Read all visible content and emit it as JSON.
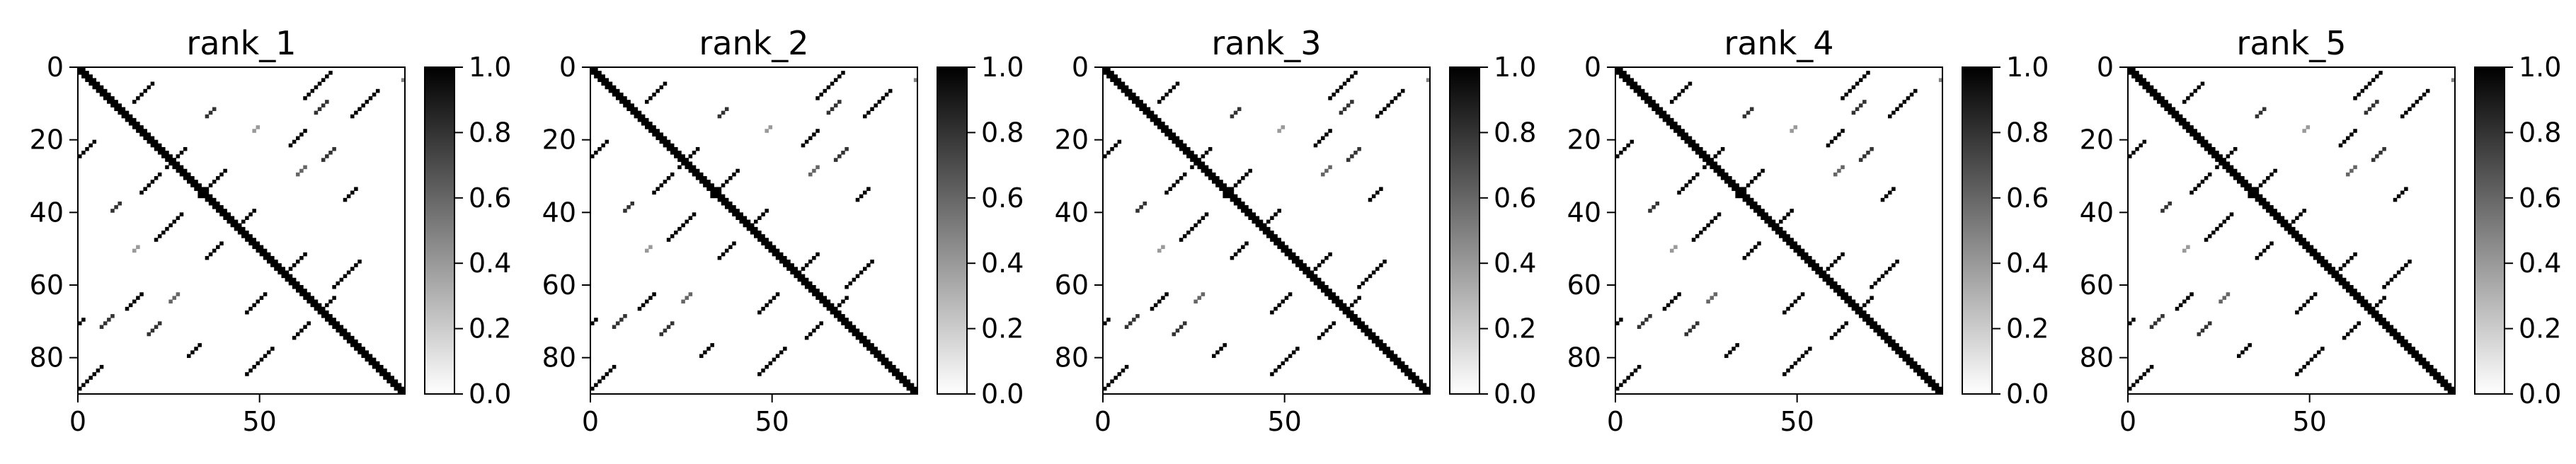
{
  "chart_data": [
    {
      "type": "heatmap",
      "title": "rank_1",
      "size": 90,
      "colormap": "gray_r",
      "x_ticks": [
        0,
        50
      ],
      "y_ticks": [
        0,
        20,
        40,
        60,
        80
      ],
      "colorbar": {
        "range": [
          0.0,
          1.0
        ],
        "ticks": [
          "0.0",
          "0.2",
          "0.4",
          "0.6",
          "0.8",
          "1.0"
        ]
      },
      "contacts": [
        {
          "i": 0,
          "j": 0,
          "w": 14,
          "v": 1.0
        },
        {
          "i": 14,
          "j": 14,
          "w": 10,
          "v": 1.0
        },
        {
          "i": 24,
          "j": 24,
          "w": 22,
          "v": 1.0
        },
        {
          "i": 46,
          "j": 46,
          "w": 10,
          "v": 1.0
        },
        {
          "i": 56,
          "j": 56,
          "w": 10,
          "v": 1.0
        },
        {
          "i": 66,
          "j": 66,
          "w": 24,
          "v": 1.0
        },
        {
          "i": 4,
          "j": 20,
          "w": 6,
          "v": 1.0
        },
        {
          "i": 22,
          "j": 29,
          "w": 6,
          "v": 1.0
        },
        {
          "i": 28,
          "j": 40,
          "w": 8,
          "v": 1.0
        },
        {
          "i": 39,
          "j": 48,
          "w": 5,
          "v": 1.0
        },
        {
          "i": 51,
          "j": 62,
          "w": 6,
          "v": 1.0
        },
        {
          "i": 63,
          "j": 70,
          "w": 5,
          "v": 1.0
        },
        {
          "i": 1,
          "j": 69,
          "w": 8,
          "v": 1.0
        },
        {
          "i": 6,
          "j": 82,
          "w": 8,
          "v": 1.0
        },
        {
          "i": 9,
          "j": 68,
          "w": 4,
          "v": 0.8
        },
        {
          "i": 17,
          "j": 62,
          "w": 5,
          "v": 1.0
        },
        {
          "i": 22,
          "j": 70,
          "w": 4,
          "v": 0.8
        },
        {
          "i": 33,
          "j": 76,
          "w": 4,
          "v": 1.0
        },
        {
          "i": 53,
          "j": 77,
          "w": 8,
          "v": 1.0
        },
        {
          "i": 11,
          "j": 37,
          "w": 3,
          "v": 0.8
        },
        {
          "i": 27,
          "j": 62,
          "w": 3,
          "v": 0.6
        },
        {
          "i": 2,
          "j": 90,
          "w": 2,
          "v": 0.5
        },
        {
          "i": 16,
          "j": 49,
          "w": 2,
          "v": 0.4
        }
      ]
    },
    {
      "type": "heatmap",
      "title": "rank_2",
      "size": 90,
      "colormap": "gray_r",
      "x_ticks": [
        0,
        50
      ],
      "y_ticks": [
        0,
        20,
        40,
        60,
        80
      ],
      "colorbar": {
        "range": [
          0.0,
          1.0
        ],
        "ticks": [
          "0.0",
          "0.2",
          "0.4",
          "0.6",
          "0.8",
          "1.0"
        ]
      },
      "contacts": [
        {
          "i": 0,
          "j": 0,
          "w": 14,
          "v": 1.0
        },
        {
          "i": 14,
          "j": 14,
          "w": 10,
          "v": 1.0
        },
        {
          "i": 24,
          "j": 24,
          "w": 22,
          "v": 1.0
        },
        {
          "i": 46,
          "j": 46,
          "w": 10,
          "v": 1.0
        },
        {
          "i": 56,
          "j": 56,
          "w": 10,
          "v": 1.0
        },
        {
          "i": 66,
          "j": 66,
          "w": 24,
          "v": 1.0
        },
        {
          "i": 4,
          "j": 20,
          "w": 6,
          "v": 1.0
        },
        {
          "i": 22,
          "j": 29,
          "w": 6,
          "v": 1.0
        },
        {
          "i": 28,
          "j": 40,
          "w": 8,
          "v": 1.0
        },
        {
          "i": 39,
          "j": 48,
          "w": 5,
          "v": 1.0
        },
        {
          "i": 51,
          "j": 62,
          "w": 6,
          "v": 1.0
        },
        {
          "i": 63,
          "j": 70,
          "w": 5,
          "v": 1.0
        },
        {
          "i": 1,
          "j": 69,
          "w": 8,
          "v": 1.0
        },
        {
          "i": 6,
          "j": 82,
          "w": 8,
          "v": 1.0
        },
        {
          "i": 9,
          "j": 68,
          "w": 4,
          "v": 0.8
        },
        {
          "i": 17,
          "j": 62,
          "w": 5,
          "v": 1.0
        },
        {
          "i": 22,
          "j": 70,
          "w": 4,
          "v": 0.8
        },
        {
          "i": 33,
          "j": 76,
          "w": 4,
          "v": 1.0
        },
        {
          "i": 53,
          "j": 77,
          "w": 8,
          "v": 1.0
        },
        {
          "i": 11,
          "j": 37,
          "w": 3,
          "v": 0.8
        },
        {
          "i": 27,
          "j": 62,
          "w": 3,
          "v": 0.6
        },
        {
          "i": 2,
          "j": 90,
          "w": 2,
          "v": 0.5
        },
        {
          "i": 16,
          "j": 49,
          "w": 2,
          "v": 0.4
        }
      ]
    },
    {
      "type": "heatmap",
      "title": "rank_3",
      "size": 90,
      "colormap": "gray_r",
      "x_ticks": [
        0,
        50
      ],
      "y_ticks": [
        0,
        20,
        40,
        60,
        80
      ],
      "colorbar": {
        "range": [
          0.0,
          1.0
        ],
        "ticks": [
          "0.0",
          "0.2",
          "0.4",
          "0.6",
          "0.8",
          "1.0"
        ]
      },
      "contacts": [
        {
          "i": 0,
          "j": 0,
          "w": 14,
          "v": 1.0
        },
        {
          "i": 14,
          "j": 14,
          "w": 10,
          "v": 1.0
        },
        {
          "i": 24,
          "j": 24,
          "w": 22,
          "v": 1.0
        },
        {
          "i": 46,
          "j": 46,
          "w": 10,
          "v": 1.0
        },
        {
          "i": 56,
          "j": 56,
          "w": 10,
          "v": 1.0
        },
        {
          "i": 66,
          "j": 66,
          "w": 24,
          "v": 1.0
        },
        {
          "i": 4,
          "j": 20,
          "w": 6,
          "v": 1.0
        },
        {
          "i": 22,
          "j": 29,
          "w": 6,
          "v": 1.0
        },
        {
          "i": 28,
          "j": 40,
          "w": 8,
          "v": 1.0
        },
        {
          "i": 39,
          "j": 48,
          "w": 5,
          "v": 1.0
        },
        {
          "i": 51,
          "j": 62,
          "w": 6,
          "v": 1.0
        },
        {
          "i": 63,
          "j": 70,
          "w": 5,
          "v": 1.0
        },
        {
          "i": 1,
          "j": 69,
          "w": 8,
          "v": 1.0
        },
        {
          "i": 6,
          "j": 82,
          "w": 8,
          "v": 1.0
        },
        {
          "i": 9,
          "j": 68,
          "w": 4,
          "v": 0.8
        },
        {
          "i": 17,
          "j": 62,
          "w": 5,
          "v": 1.0
        },
        {
          "i": 22,
          "j": 70,
          "w": 4,
          "v": 0.8
        },
        {
          "i": 33,
          "j": 76,
          "w": 4,
          "v": 1.0
        },
        {
          "i": 53,
          "j": 77,
          "w": 8,
          "v": 1.0
        },
        {
          "i": 11,
          "j": 37,
          "w": 3,
          "v": 0.8
        },
        {
          "i": 27,
          "j": 62,
          "w": 3,
          "v": 0.6
        },
        {
          "i": 2,
          "j": 90,
          "w": 2,
          "v": 0.5
        },
        {
          "i": 16,
          "j": 49,
          "w": 2,
          "v": 0.4
        }
      ]
    },
    {
      "type": "heatmap",
      "title": "rank_4",
      "size": 90,
      "colormap": "gray_r",
      "x_ticks": [
        0,
        50
      ],
      "y_ticks": [
        0,
        20,
        40,
        60,
        80
      ],
      "colorbar": {
        "range": [
          0.0,
          1.0
        ],
        "ticks": [
          "0.0",
          "0.2",
          "0.4",
          "0.6",
          "0.8",
          "1.0"
        ]
      },
      "contacts": [
        {
          "i": 0,
          "j": 0,
          "w": 14,
          "v": 1.0
        },
        {
          "i": 14,
          "j": 14,
          "w": 10,
          "v": 1.0
        },
        {
          "i": 24,
          "j": 24,
          "w": 22,
          "v": 1.0
        },
        {
          "i": 46,
          "j": 46,
          "w": 10,
          "v": 1.0
        },
        {
          "i": 56,
          "j": 56,
          "w": 10,
          "v": 1.0
        },
        {
          "i": 66,
          "j": 66,
          "w": 24,
          "v": 1.0
        },
        {
          "i": 4,
          "j": 20,
          "w": 6,
          "v": 1.0
        },
        {
          "i": 22,
          "j": 29,
          "w": 6,
          "v": 1.0
        },
        {
          "i": 28,
          "j": 40,
          "w": 8,
          "v": 1.0
        },
        {
          "i": 39,
          "j": 48,
          "w": 5,
          "v": 1.0
        },
        {
          "i": 51,
          "j": 62,
          "w": 6,
          "v": 1.0
        },
        {
          "i": 63,
          "j": 70,
          "w": 5,
          "v": 1.0
        },
        {
          "i": 1,
          "j": 69,
          "w": 8,
          "v": 1.0
        },
        {
          "i": 6,
          "j": 82,
          "w": 8,
          "v": 1.0
        },
        {
          "i": 9,
          "j": 68,
          "w": 4,
          "v": 0.8
        },
        {
          "i": 17,
          "j": 62,
          "w": 5,
          "v": 1.0
        },
        {
          "i": 22,
          "j": 70,
          "w": 4,
          "v": 0.8
        },
        {
          "i": 33,
          "j": 76,
          "w": 4,
          "v": 1.0
        },
        {
          "i": 53,
          "j": 77,
          "w": 8,
          "v": 1.0
        },
        {
          "i": 11,
          "j": 37,
          "w": 3,
          "v": 0.8
        },
        {
          "i": 27,
          "j": 62,
          "w": 3,
          "v": 0.6
        },
        {
          "i": 2,
          "j": 90,
          "w": 2,
          "v": 0.5
        },
        {
          "i": 16,
          "j": 49,
          "w": 2,
          "v": 0.4
        }
      ]
    },
    {
      "type": "heatmap",
      "title": "rank_5",
      "size": 90,
      "colormap": "gray_r",
      "x_ticks": [
        0,
        50
      ],
      "y_ticks": [
        0,
        20,
        40,
        60,
        80
      ],
      "colorbar": {
        "range": [
          0.0,
          1.0
        ],
        "ticks": [
          "0.0",
          "0.2",
          "0.4",
          "0.6",
          "0.8",
          "1.0"
        ]
      },
      "contacts": [
        {
          "i": 0,
          "j": 0,
          "w": 14,
          "v": 1.0
        },
        {
          "i": 14,
          "j": 14,
          "w": 10,
          "v": 1.0
        },
        {
          "i": 24,
          "j": 24,
          "w": 22,
          "v": 1.0
        },
        {
          "i": 46,
          "j": 46,
          "w": 10,
          "v": 1.0
        },
        {
          "i": 56,
          "j": 56,
          "w": 10,
          "v": 1.0
        },
        {
          "i": 66,
          "j": 66,
          "w": 24,
          "v": 1.0
        },
        {
          "i": 4,
          "j": 20,
          "w": 6,
          "v": 1.0
        },
        {
          "i": 22,
          "j": 29,
          "w": 6,
          "v": 1.0
        },
        {
          "i": 28,
          "j": 40,
          "w": 8,
          "v": 1.0
        },
        {
          "i": 39,
          "j": 48,
          "w": 5,
          "v": 1.0
        },
        {
          "i": 51,
          "j": 62,
          "w": 6,
          "v": 1.0
        },
        {
          "i": 63,
          "j": 70,
          "w": 5,
          "v": 1.0
        },
        {
          "i": 1,
          "j": 69,
          "w": 8,
          "v": 1.0
        },
        {
          "i": 6,
          "j": 82,
          "w": 8,
          "v": 1.0
        },
        {
          "i": 9,
          "j": 68,
          "w": 4,
          "v": 0.8
        },
        {
          "i": 17,
          "j": 62,
          "w": 5,
          "v": 1.0
        },
        {
          "i": 22,
          "j": 70,
          "w": 4,
          "v": 0.8
        },
        {
          "i": 33,
          "j": 76,
          "w": 4,
          "v": 1.0
        },
        {
          "i": 53,
          "j": 77,
          "w": 8,
          "v": 1.0
        },
        {
          "i": 11,
          "j": 37,
          "w": 3,
          "v": 0.8
        },
        {
          "i": 27,
          "j": 62,
          "w": 3,
          "v": 0.6
        },
        {
          "i": 2,
          "j": 90,
          "w": 2,
          "v": 0.5
        },
        {
          "i": 16,
          "j": 49,
          "w": 2,
          "v": 0.4
        }
      ]
    }
  ]
}
